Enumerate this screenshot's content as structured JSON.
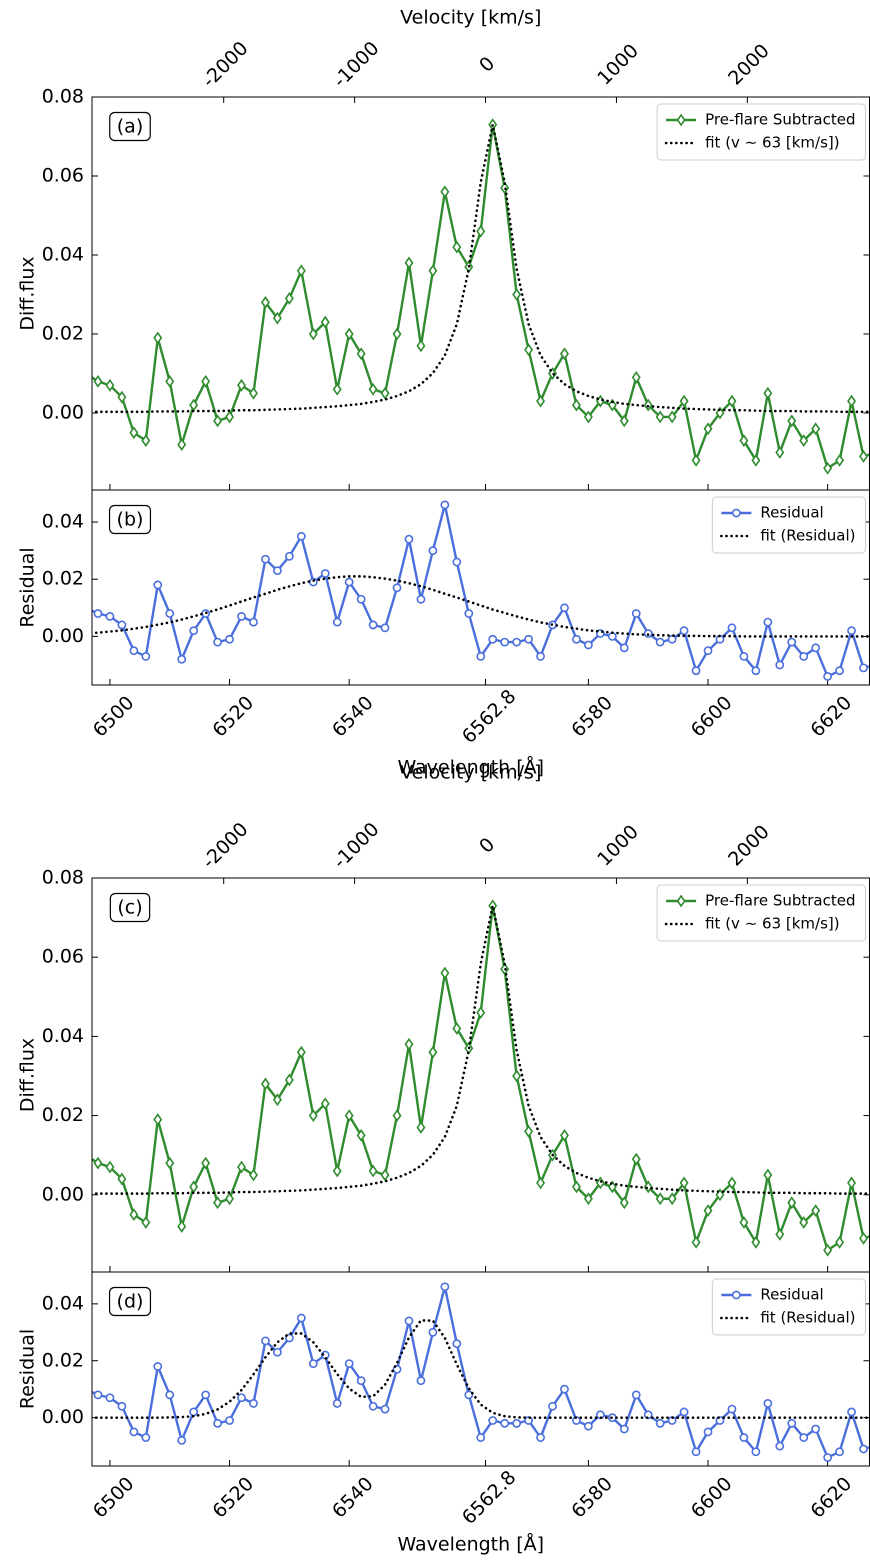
{
  "chart_data": [
    {
      "type": "line",
      "panel_label": "(a)",
      "ylabel": "Diff.flux",
      "x2label": "Velocity [km/s]",
      "x2lim": [
        -3006,
        2933
      ],
      "x2ticks": [
        -2000,
        -1000,
        0,
        1000,
        2000
      ],
      "xlim": [
        6497,
        6627
      ],
      "ylim": [
        -0.0195,
        0.08
      ],
      "yticks": [
        {
          "value": 0,
          "label": "0.00"
        },
        {
          "value": 0.02,
          "label": "0.02"
        },
        {
          "value": 0.04,
          "label": "0.04"
        },
        {
          "value": 0.06,
          "label": "0.06"
        },
        {
          "value": 0.08,
          "label": "0.08"
        }
      ],
      "legend": "upper right",
      "x": [
        6496,
        6498,
        6500,
        6502,
        6504,
        6506,
        6508,
        6510,
        6512,
        6514,
        6516,
        6518,
        6520,
        6522,
        6524,
        6526,
        6528,
        6530,
        6532,
        6534,
        6536,
        6538,
        6540,
        6542,
        6544,
        6546,
        6548,
        6550,
        6552,
        6554,
        6556,
        6558,
        6560,
        6562,
        6564,
        6566,
        6568,
        6570,
        6572,
        6574,
        6576,
        6578,
        6580,
        6582,
        6584,
        6586,
        6588,
        6590,
        6592,
        6594,
        6596,
        6598,
        6600,
        6602,
        6604,
        6606,
        6608,
        6610,
        6612,
        6614,
        6616,
        6618,
        6620,
        6622,
        6624,
        6626,
        6628
      ],
      "series": [
        {
          "name": "Pre-flare Subtracted",
          "color": "#2e8b2e",
          "marker": "diamond",
          "values": [
            0.01,
            0.008,
            0.007,
            0.004,
            -0.005,
            -0.007,
            0.019,
            0.008,
            -0.008,
            0.002,
            0.008,
            -0.002,
            -0.001,
            0.007,
            0.005,
            0.028,
            0.024,
            0.029,
            0.036,
            0.02,
            0.023,
            0.006,
            0.02,
            0.015,
            0.006,
            0.005,
            0.02,
            0.038,
            0.017,
            0.036,
            0.056,
            0.042,
            0.037,
            0.046,
            0.073,
            0.057,
            0.03,
            0.016,
            0.003,
            0.01,
            0.015,
            0.002,
            -0.001,
            0.003,
            0.002,
            -0.002,
            0.009,
            0.002,
            -0.001,
            -0.001,
            0.003,
            -0.012,
            -0.004,
            0.0,
            0.003,
            -0.007,
            -0.012,
            0.005,
            -0.01,
            -0.002,
            -0.007,
            -0.004,
            -0.014,
            -0.012,
            0.003,
            -0.011,
            -0.01
          ]
        },
        {
          "name": "fit (v ∼ 63 [km/s])",
          "color": "#000000",
          "style": "dotted",
          "values": [
            0.0003,
            0.0003,
            0.0003,
            0.0003,
            0.0003,
            0.0003,
            0.0004,
            0.0004,
            0.0004,
            0.0005,
            0.0005,
            0.0005,
            0.0006,
            0.0007,
            0.0007,
            0.0008,
            0.0009,
            0.001,
            0.0011,
            0.0013,
            0.0015,
            0.0017,
            0.002,
            0.0023,
            0.0028,
            0.0034,
            0.0043,
            0.0055,
            0.0073,
            0.0101,
            0.0146,
            0.0225,
            0.0365,
            0.0584,
            0.073,
            0.0584,
            0.0365,
            0.0225,
            0.0146,
            0.0101,
            0.0073,
            0.0055,
            0.0043,
            0.0034,
            0.0028,
            0.0023,
            0.002,
            0.0017,
            0.0015,
            0.0013,
            0.0011,
            0.001,
            0.0009,
            0.0008,
            0.0007,
            0.0007,
            0.0006,
            0.0005,
            0.0005,
            0.0005,
            0.0004,
            0.0004,
            0.0004,
            0.0003,
            0.0003,
            0.0003,
            0.0003
          ]
        }
      ]
    },
    {
      "type": "line",
      "panel_label": "(b)",
      "ylabel": "Residual",
      "xlabel": "Wavelength [Å]",
      "xlim": [
        6497,
        6627
      ],
      "ylim": [
        -0.017,
        0.0512
      ],
      "xticks": [
        6500,
        6520,
        6540,
        6562.8,
        6580,
        6600,
        6620
      ],
      "yticks": [
        {
          "value": 0,
          "label": "0.00"
        },
        {
          "value": 0.02,
          "label": "0.02"
        },
        {
          "value": 0.04,
          "label": "0.04"
        }
      ],
      "legend": "upper right",
      "x": [
        6496,
        6498,
        6500,
        6502,
        6504,
        6506,
        6508,
        6510,
        6512,
        6514,
        6516,
        6518,
        6520,
        6522,
        6524,
        6526,
        6528,
        6530,
        6532,
        6534,
        6536,
        6538,
        6540,
        6542,
        6544,
        6546,
        6548,
        6550,
        6552,
        6554,
        6556,
        6558,
        6560,
        6562,
        6564,
        6566,
        6568,
        6570,
        6572,
        6574,
        6576,
        6578,
        6580,
        6582,
        6584,
        6586,
        6588,
        6590,
        6592,
        6594,
        6596,
        6598,
        6600,
        6602,
        6604,
        6606,
        6608,
        6610,
        6612,
        6614,
        6616,
        6618,
        6620,
        6622,
        6624,
        6626,
        6628
      ],
      "series": [
        {
          "name": "Residual",
          "color": "#4a6fdc",
          "marker": "circle",
          "values": [
            0.01,
            0.008,
            0.007,
            0.004,
            -0.005,
            -0.007,
            0.018,
            0.008,
            -0.008,
            0.002,
            0.008,
            -0.002,
            -0.001,
            0.007,
            0.005,
            0.027,
            0.023,
            0.028,
            0.035,
            0.019,
            0.022,
            0.005,
            0.019,
            0.013,
            0.004,
            0.003,
            0.017,
            0.034,
            0.013,
            0.03,
            0.046,
            0.026,
            0.008,
            -0.007,
            -0.001,
            -0.002,
            -0.002,
            -0.001,
            -0.007,
            0.004,
            0.01,
            -0.001,
            -0.003,
            0.001,
            0.0,
            -0.004,
            0.008,
            0.001,
            -0.002,
            -0.001,
            0.002,
            -0.012,
            -0.005,
            -0.001,
            0.003,
            -0.007,
            -0.012,
            0.005,
            -0.01,
            -0.002,
            -0.007,
            -0.004,
            -0.014,
            -0.012,
            0.002,
            -0.011,
            -0.01
          ]
        },
        {
          "name": "fit (Residual)",
          "color": "#000000",
          "style": "dotted",
          "values": [
            0.001,
            0.0013,
            0.0017,
            0.0021,
            0.0027,
            0.0033,
            0.0041,
            0.0049,
            0.0059,
            0.007,
            0.0082,
            0.0094,
            0.0108,
            0.0122,
            0.0136,
            0.0149,
            0.0163,
            0.0175,
            0.0186,
            0.0195,
            0.0202,
            0.0207,
            0.021,
            0.021,
            0.0207,
            0.0202,
            0.0195,
            0.0186,
            0.0175,
            0.0163,
            0.0149,
            0.0136,
            0.0122,
            0.0108,
            0.0094,
            0.0082,
            0.007,
            0.0059,
            0.0049,
            0.0041,
            0.0033,
            0.0027,
            0.0021,
            0.0017,
            0.0013,
            0.001,
            0.0007,
            0.0006,
            0.0004,
            0.0003,
            0.0002,
            0.0002,
            0.0001,
            0.0001,
            0.0001,
            0,
            0,
            0,
            0,
            0,
            0,
            0,
            0,
            0,
            0,
            0,
            0
          ]
        }
      ]
    },
    {
      "type": "line",
      "panel_label": "(c)",
      "ylabel": "Diff.flux",
      "x2label": "Velocity [km/s]",
      "x2lim": [
        -3006,
        2933
      ],
      "x2ticks": [
        -2000,
        -1000,
        0,
        1000,
        2000
      ],
      "xlim": [
        6497,
        6627
      ],
      "ylim": [
        -0.0195,
        0.08
      ],
      "yticks": [
        {
          "value": 0,
          "label": "0.00"
        },
        {
          "value": 0.02,
          "label": "0.02"
        },
        {
          "value": 0.04,
          "label": "0.04"
        },
        {
          "value": 0.06,
          "label": "0.06"
        },
        {
          "value": 0.08,
          "label": "0.08"
        }
      ],
      "legend": "upper right",
      "x": [
        6496,
        6498,
        6500,
        6502,
        6504,
        6506,
        6508,
        6510,
        6512,
        6514,
        6516,
        6518,
        6520,
        6522,
        6524,
        6526,
        6528,
        6530,
        6532,
        6534,
        6536,
        6538,
        6540,
        6542,
        6544,
        6546,
        6548,
        6550,
        6552,
        6554,
        6556,
        6558,
        6560,
        6562,
        6564,
        6566,
        6568,
        6570,
        6572,
        6574,
        6576,
        6578,
        6580,
        6582,
        6584,
        6586,
        6588,
        6590,
        6592,
        6594,
        6596,
        6598,
        6600,
        6602,
        6604,
        6606,
        6608,
        6610,
        6612,
        6614,
        6616,
        6618,
        6620,
        6622,
        6624,
        6626,
        6628
      ],
      "series": [
        {
          "name": "Pre-flare Subtracted",
          "color": "#2e8b2e",
          "marker": "diamond",
          "values": [
            0.01,
            0.008,
            0.007,
            0.004,
            -0.005,
            -0.007,
            0.019,
            0.008,
            -0.008,
            0.002,
            0.008,
            -0.002,
            -0.001,
            0.007,
            0.005,
            0.028,
            0.024,
            0.029,
            0.036,
            0.02,
            0.023,
            0.006,
            0.02,
            0.015,
            0.006,
            0.005,
            0.02,
            0.038,
            0.017,
            0.036,
            0.056,
            0.042,
            0.037,
            0.046,
            0.073,
            0.057,
            0.03,
            0.016,
            0.003,
            0.01,
            0.015,
            0.002,
            -0.001,
            0.003,
            0.002,
            -0.002,
            0.009,
            0.002,
            -0.001,
            -0.001,
            0.003,
            -0.012,
            -0.004,
            0.0,
            0.003,
            -0.007,
            -0.012,
            0.005,
            -0.01,
            -0.002,
            -0.007,
            -0.004,
            -0.014,
            -0.012,
            0.003,
            -0.011,
            -0.01
          ]
        },
        {
          "name": "fit (v ∼ 63 [km/s])",
          "color": "#000000",
          "style": "dotted",
          "values": [
            0.0003,
            0.0003,
            0.0003,
            0.0003,
            0.0003,
            0.0003,
            0.0004,
            0.0004,
            0.0004,
            0.0005,
            0.0005,
            0.0005,
            0.0006,
            0.0007,
            0.0007,
            0.0008,
            0.0009,
            0.001,
            0.0011,
            0.0013,
            0.0015,
            0.0017,
            0.002,
            0.0023,
            0.0028,
            0.0034,
            0.0043,
            0.0055,
            0.0073,
            0.0101,
            0.0146,
            0.0225,
            0.0365,
            0.0584,
            0.073,
            0.0584,
            0.0365,
            0.0225,
            0.0146,
            0.0101,
            0.0073,
            0.0055,
            0.0043,
            0.0034,
            0.0028,
            0.0023,
            0.002,
            0.0017,
            0.0015,
            0.0013,
            0.0011,
            0.001,
            0.0009,
            0.0008,
            0.0007,
            0.0007,
            0.0006,
            0.0005,
            0.0005,
            0.0005,
            0.0004,
            0.0004,
            0.0004,
            0.0003,
            0.0003,
            0.0003,
            0.0003
          ]
        }
      ]
    },
    {
      "type": "line",
      "panel_label": "(d)",
      "ylabel": "Residual",
      "xlabel": "Wavelength [Å]",
      "xlim": [
        6497,
        6627
      ],
      "ylim": [
        -0.017,
        0.0512
      ],
      "xticks": [
        6500,
        6520,
        6540,
        6562.8,
        6580,
        6600,
        6620
      ],
      "yticks": [
        {
          "value": 0,
          "label": "0.00"
        },
        {
          "value": 0.02,
          "label": "0.02"
        },
        {
          "value": 0.04,
          "label": "0.04"
        }
      ],
      "legend": "upper right",
      "x": [
        6496,
        6498,
        6500,
        6502,
        6504,
        6506,
        6508,
        6510,
        6512,
        6514,
        6516,
        6518,
        6520,
        6522,
        6524,
        6526,
        6528,
        6530,
        6532,
        6534,
        6536,
        6538,
        6540,
        6542,
        6544,
        6546,
        6548,
        6550,
        6552,
        6554,
        6556,
        6558,
        6560,
        6562,
        6564,
        6566,
        6568,
        6570,
        6572,
        6574,
        6576,
        6578,
        6580,
        6582,
        6584,
        6586,
        6588,
        6590,
        6592,
        6594,
        6596,
        6598,
        6600,
        6602,
        6604,
        6606,
        6608,
        6610,
        6612,
        6614,
        6616,
        6618,
        6620,
        6622,
        6624,
        6626,
        6628
      ],
      "series": [
        {
          "name": "Residual",
          "color": "#4a6fdc",
          "marker": "circle",
          "values": [
            0.01,
            0.008,
            0.007,
            0.004,
            -0.005,
            -0.007,
            0.018,
            0.008,
            -0.008,
            0.002,
            0.008,
            -0.002,
            -0.001,
            0.007,
            0.005,
            0.027,
            0.023,
            0.028,
            0.035,
            0.019,
            0.022,
            0.005,
            0.019,
            0.013,
            0.004,
            0.003,
            0.017,
            0.034,
            0.013,
            0.03,
            0.046,
            0.026,
            0.008,
            -0.007,
            -0.001,
            -0.002,
            -0.002,
            -0.001,
            -0.007,
            0.004,
            0.01,
            -0.001,
            -0.003,
            0.001,
            0.0,
            -0.004,
            0.008,
            0.001,
            -0.002,
            -0.001,
            0.002,
            -0.012,
            -0.005,
            -0.001,
            0.003,
            -0.007,
            -0.012,
            0.005,
            -0.01,
            -0.002,
            -0.007,
            -0.004,
            -0.014,
            -0.012,
            0.002,
            -0.011,
            -0.01
          ]
        },
        {
          "name": "fit (Residual)",
          "color": "#000000",
          "style": "dotted",
          "values": [
            0,
            0,
            0,
            0,
            0,
            0,
            0,
            0.0001,
            0.0002,
            0.0005,
            0.0013,
            0.0029,
            0.0056,
            0.0097,
            0.0152,
            0.0212,
            0.0265,
            0.0296,
            0.0296,
            0.0265,
            0.0212,
            0.0153,
            0.0102,
            0.0073,
            0.0075,
            0.0116,
            0.0192,
            0.0282,
            0.0342,
            0.0341,
            0.028,
            0.0187,
            0.0103,
            0.0046,
            0.0017,
            0.0005,
            0.0001,
            0,
            0,
            0,
            0,
            0,
            0,
            0,
            0,
            0,
            0,
            0,
            0,
            0,
            0,
            0,
            0,
            0,
            0,
            0,
            0,
            0,
            0,
            0,
            0,
            0,
            0,
            0,
            0,
            0,
            0
          ]
        }
      ]
    }
  ]
}
